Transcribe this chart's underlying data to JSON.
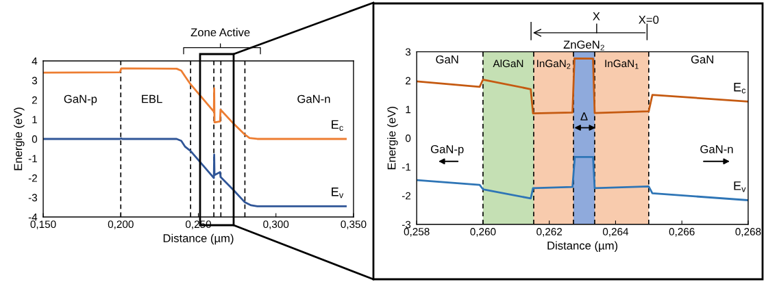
{
  "chart_data": [
    {
      "type": "line",
      "xlabel": "Distance (µm)",
      "ylabel": "Energie (eV)",
      "xlim": [
        0.15,
        0.35
      ],
      "ylim": [
        -4,
        4
      ],
      "xticks": [
        {
          "value": 0.15,
          "label": "0,150"
        },
        {
          "value": 0.2,
          "label": "0,200"
        },
        {
          "value": 0.25,
          "label": "0,250"
        },
        {
          "value": 0.3,
          "label": "0,300"
        },
        {
          "value": 0.35,
          "label": "0,350"
        }
      ],
      "yticks": [
        -4,
        -3,
        -2,
        -1,
        0,
        1,
        2,
        3,
        4
      ],
      "grid": false,
      "legend": false,
      "series": [
        {
          "name": "E$_{c}$",
          "color": "#ed7d31",
          "x": [
            0.15,
            0.1995,
            0.2003,
            0.236,
            0.239,
            0.2415,
            0.245,
            0.26,
            0.2602,
            0.2604,
            0.264,
            0.2643,
            0.273,
            0.28,
            0.283,
            0.288,
            0.345
          ],
          "values": [
            3.4,
            3.42,
            3.62,
            3.6,
            3.5,
            3.2,
            2.8,
            1.4,
            2.6,
            0.85,
            0.9,
            1.5,
            0.76,
            0.22,
            0.05,
            0.0,
            0.0
          ]
        },
        {
          "name": "E$_{v}$",
          "color": "#2f5597",
          "x": [
            0.15,
            0.1995,
            0.2003,
            0.201,
            0.236,
            0.239,
            0.2415,
            0.245,
            0.26,
            0.2602,
            0.2604,
            0.264,
            0.2643,
            0.273,
            0.28,
            0.284,
            0.288,
            0.345
          ],
          "values": [
            0.0,
            0.0,
            0.03,
            0.0,
            0.0,
            -0.1,
            -0.4,
            -0.62,
            -2.0,
            -0.8,
            -1.85,
            -1.7,
            -1.95,
            -2.65,
            -3.25,
            -3.4,
            -3.45,
            -3.45
          ]
        }
      ],
      "ref_lines": [
        {
          "axis": "x",
          "value": 0.2,
          "color": "#000000",
          "line_style": "dashed"
        },
        {
          "axis": "x",
          "value": 0.245,
          "color": "#000000",
          "line_style": "dashed"
        },
        {
          "axis": "x",
          "value": 0.26,
          "color": "#000000",
          "line_style": "dashed"
        },
        {
          "axis": "x",
          "value": 0.2645,
          "color": "#000000",
          "line_style": "dashed"
        },
        {
          "axis": "x",
          "value": 0.28,
          "color": "#000000",
          "line_style": "dashed"
        }
      ],
      "annotations": [
        "Zone Active",
        "GaN-p",
        "EBL",
        "GaN-n"
      ]
    },
    {
      "type": "line",
      "xlabel": "Distance (µm)",
      "ylabel": "Energie (eV)",
      "xlim": [
        0.258,
        0.268
      ],
      "ylim": [
        -3,
        3
      ],
      "xticks": [
        {
          "value": 0.258,
          "label": "0,258"
        },
        {
          "value": 0.26,
          "label": "0,260"
        },
        {
          "value": 0.262,
          "label": "0,262"
        },
        {
          "value": 0.264,
          "label": "0,264"
        },
        {
          "value": 0.266,
          "label": "0,266"
        },
        {
          "value": 0.268,
          "label": "0,268"
        }
      ],
      "yticks": [
        -3,
        -2,
        -1,
        0,
        1,
        2,
        3
      ],
      "grid": false,
      "legend": false,
      "series": [
        {
          "name": "E$_{c}$",
          "color": "#c55a11",
          "x": [
            0.258,
            0.2599,
            0.26,
            0.26144,
            0.26151,
            0.2627,
            0.26276,
            0.26332,
            0.26337,
            0.265,
            0.26511,
            0.268
          ],
          "values": [
            1.97,
            1.78,
            2.03,
            1.7,
            0.86,
            0.89,
            2.77,
            2.76,
            0.87,
            0.93,
            1.5,
            1.27
          ]
        },
        {
          "name": "E$_{v}$",
          "color": "#2e75b6",
          "x": [
            0.258,
            0.2599,
            0.26,
            0.26144,
            0.26151,
            0.2627,
            0.26277,
            0.26332,
            0.26337,
            0.265,
            0.26511,
            0.268
          ],
          "values": [
            -1.46,
            -1.63,
            -1.78,
            -2.1,
            -1.74,
            -1.7,
            -0.66,
            -0.66,
            -1.74,
            -1.68,
            -1.92,
            -2.16
          ]
        }
      ],
      "ref_lines": [
        {
          "axis": "x",
          "value": 0.26,
          "color": "#000000",
          "line_style": "dashed"
        },
        {
          "axis": "x",
          "value": 0.26153,
          "color": "#000000",
          "line_style": "dashed"
        },
        {
          "axis": "x",
          "value": 0.26273,
          "color": "#000000",
          "line_style": "dashed"
        },
        {
          "axis": "x",
          "value": 0.26337,
          "color": "#000000",
          "line_style": "dashed"
        },
        {
          "axis": "x",
          "value": 0.265,
          "color": "#000000",
          "line_style": "dashed"
        }
      ],
      "bands": [
        {
          "axis": "x",
          "from": 0.26,
          "to": 0.26153,
          "label": "AlGaN",
          "color": "#c5e0b4"
        },
        {
          "axis": "x",
          "from": 0.26153,
          "to": 0.26273,
          "label": "InGaN$_{2}$",
          "color": "#f8cbad"
        },
        {
          "axis": "x",
          "from": 0.26273,
          "to": 0.26337,
          "label": "ZnGeN$_{2}$",
          "color": "#8faadc"
        },
        {
          "axis": "x",
          "from": 0.26337,
          "to": 0.265,
          "label": "InGaN$_{1}$",
          "color": "#f8cbad"
        }
      ],
      "annotations": [
        "GaN",
        "GaN",
        "GaN-p",
        "GaN-n",
        "Δ",
        "X",
        "X=0"
      ]
    }
  ]
}
